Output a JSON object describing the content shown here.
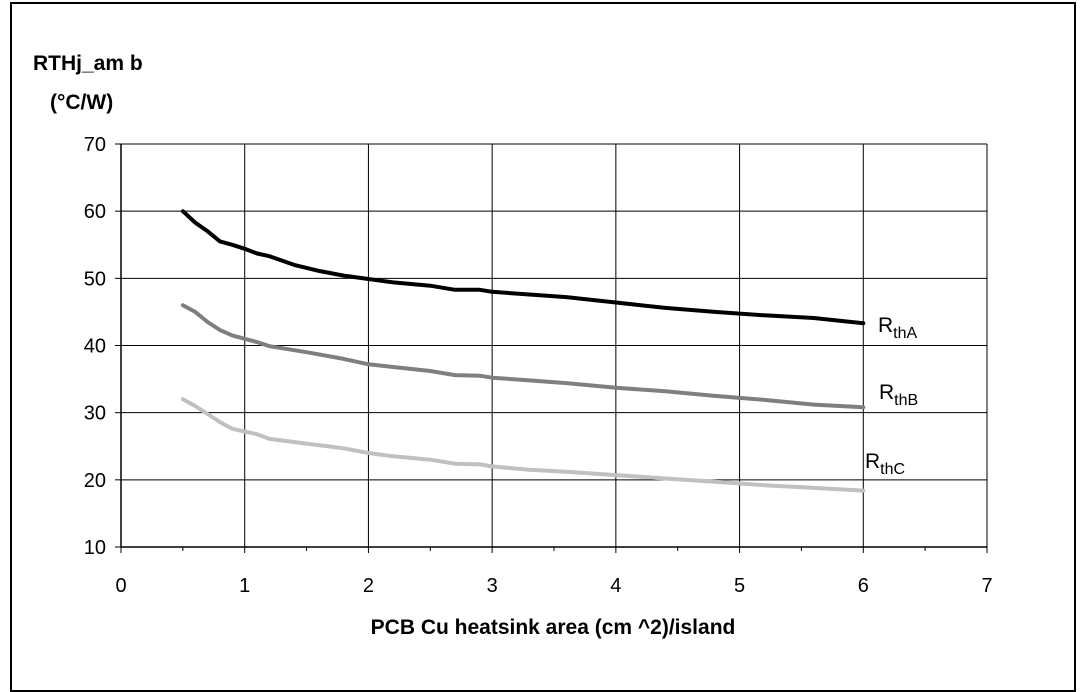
{
  "chart_data": {
    "type": "line",
    "title": "",
    "ylabel_line1": "RTHj_am b",
    "ylabel_line2": "(°C/W)",
    "xlabel": "PCB Cu heatsink area (cm ^2)/island",
    "xlim": [
      0,
      7
    ],
    "ylim": [
      10,
      70
    ],
    "x_ticks": [
      0,
      1,
      2,
      3,
      4,
      5,
      6,
      7
    ],
    "y_ticks": [
      10,
      20,
      30,
      40,
      50,
      60,
      70
    ],
    "grid": true,
    "legend": "inline labels at line ends",
    "series": [
      {
        "name": "RthA",
        "label_main": "R",
        "label_sub": "thA",
        "color": "#000000",
        "x": [
          0.5,
          0.6,
          0.7,
          0.8,
          0.9,
          1.0,
          1.1,
          1.2,
          1.4,
          1.6,
          1.8,
          2.0,
          2.2,
          2.5,
          2.7,
          2.9,
          3.0,
          3.3,
          3.6,
          4.0,
          4.4,
          4.8,
          5.2,
          5.6,
          6.0
        ],
        "y": [
          60,
          58.3,
          57,
          55.5,
          55,
          54.4,
          53.7,
          53.3,
          52,
          51.1,
          50.4,
          49.9,
          49.4,
          48.9,
          48.3,
          48.3,
          48,
          47.6,
          47.2,
          46.4,
          45.6,
          45,
          44.5,
          44.1,
          43.3
        ]
      },
      {
        "name": "RthB",
        "label_main": "R",
        "label_sub": "thB",
        "color": "#7f7f7f",
        "x": [
          0.5,
          0.6,
          0.7,
          0.8,
          0.9,
          1.0,
          1.1,
          1.2,
          1.5,
          1.8,
          2.0,
          2.2,
          2.5,
          2.7,
          2.9,
          3.0,
          3.3,
          3.6,
          4.0,
          4.4,
          4.8,
          5.2,
          5.6,
          6.0
        ],
        "y": [
          46,
          45,
          43.5,
          42.3,
          41.5,
          41,
          40.5,
          39.9,
          39,
          38,
          37.2,
          36.8,
          36.2,
          35.6,
          35.5,
          35.2,
          34.8,
          34.4,
          33.7,
          33.2,
          32.5,
          31.9,
          31.2,
          30.8
        ]
      },
      {
        "name": "RthC",
        "label_main": "R",
        "label_sub": "thC",
        "color": "#c0c0c0",
        "x": [
          0.5,
          0.6,
          0.7,
          0.8,
          0.9,
          1.0,
          1.1,
          1.2,
          1.5,
          1.8,
          2.0,
          2.2,
          2.5,
          2.7,
          2.9,
          3.0,
          3.3,
          3.6,
          4.0,
          4.4,
          4.8,
          5.2,
          5.6,
          6.0
        ],
        "y": [
          32,
          31,
          29.8,
          28.6,
          27.6,
          27.2,
          26.8,
          26.1,
          25.4,
          24.7,
          24,
          23.5,
          23,
          22.4,
          22.3,
          22,
          21.5,
          21.2,
          20.7,
          20.2,
          19.7,
          19.2,
          18.8,
          18.4
        ]
      }
    ]
  }
}
